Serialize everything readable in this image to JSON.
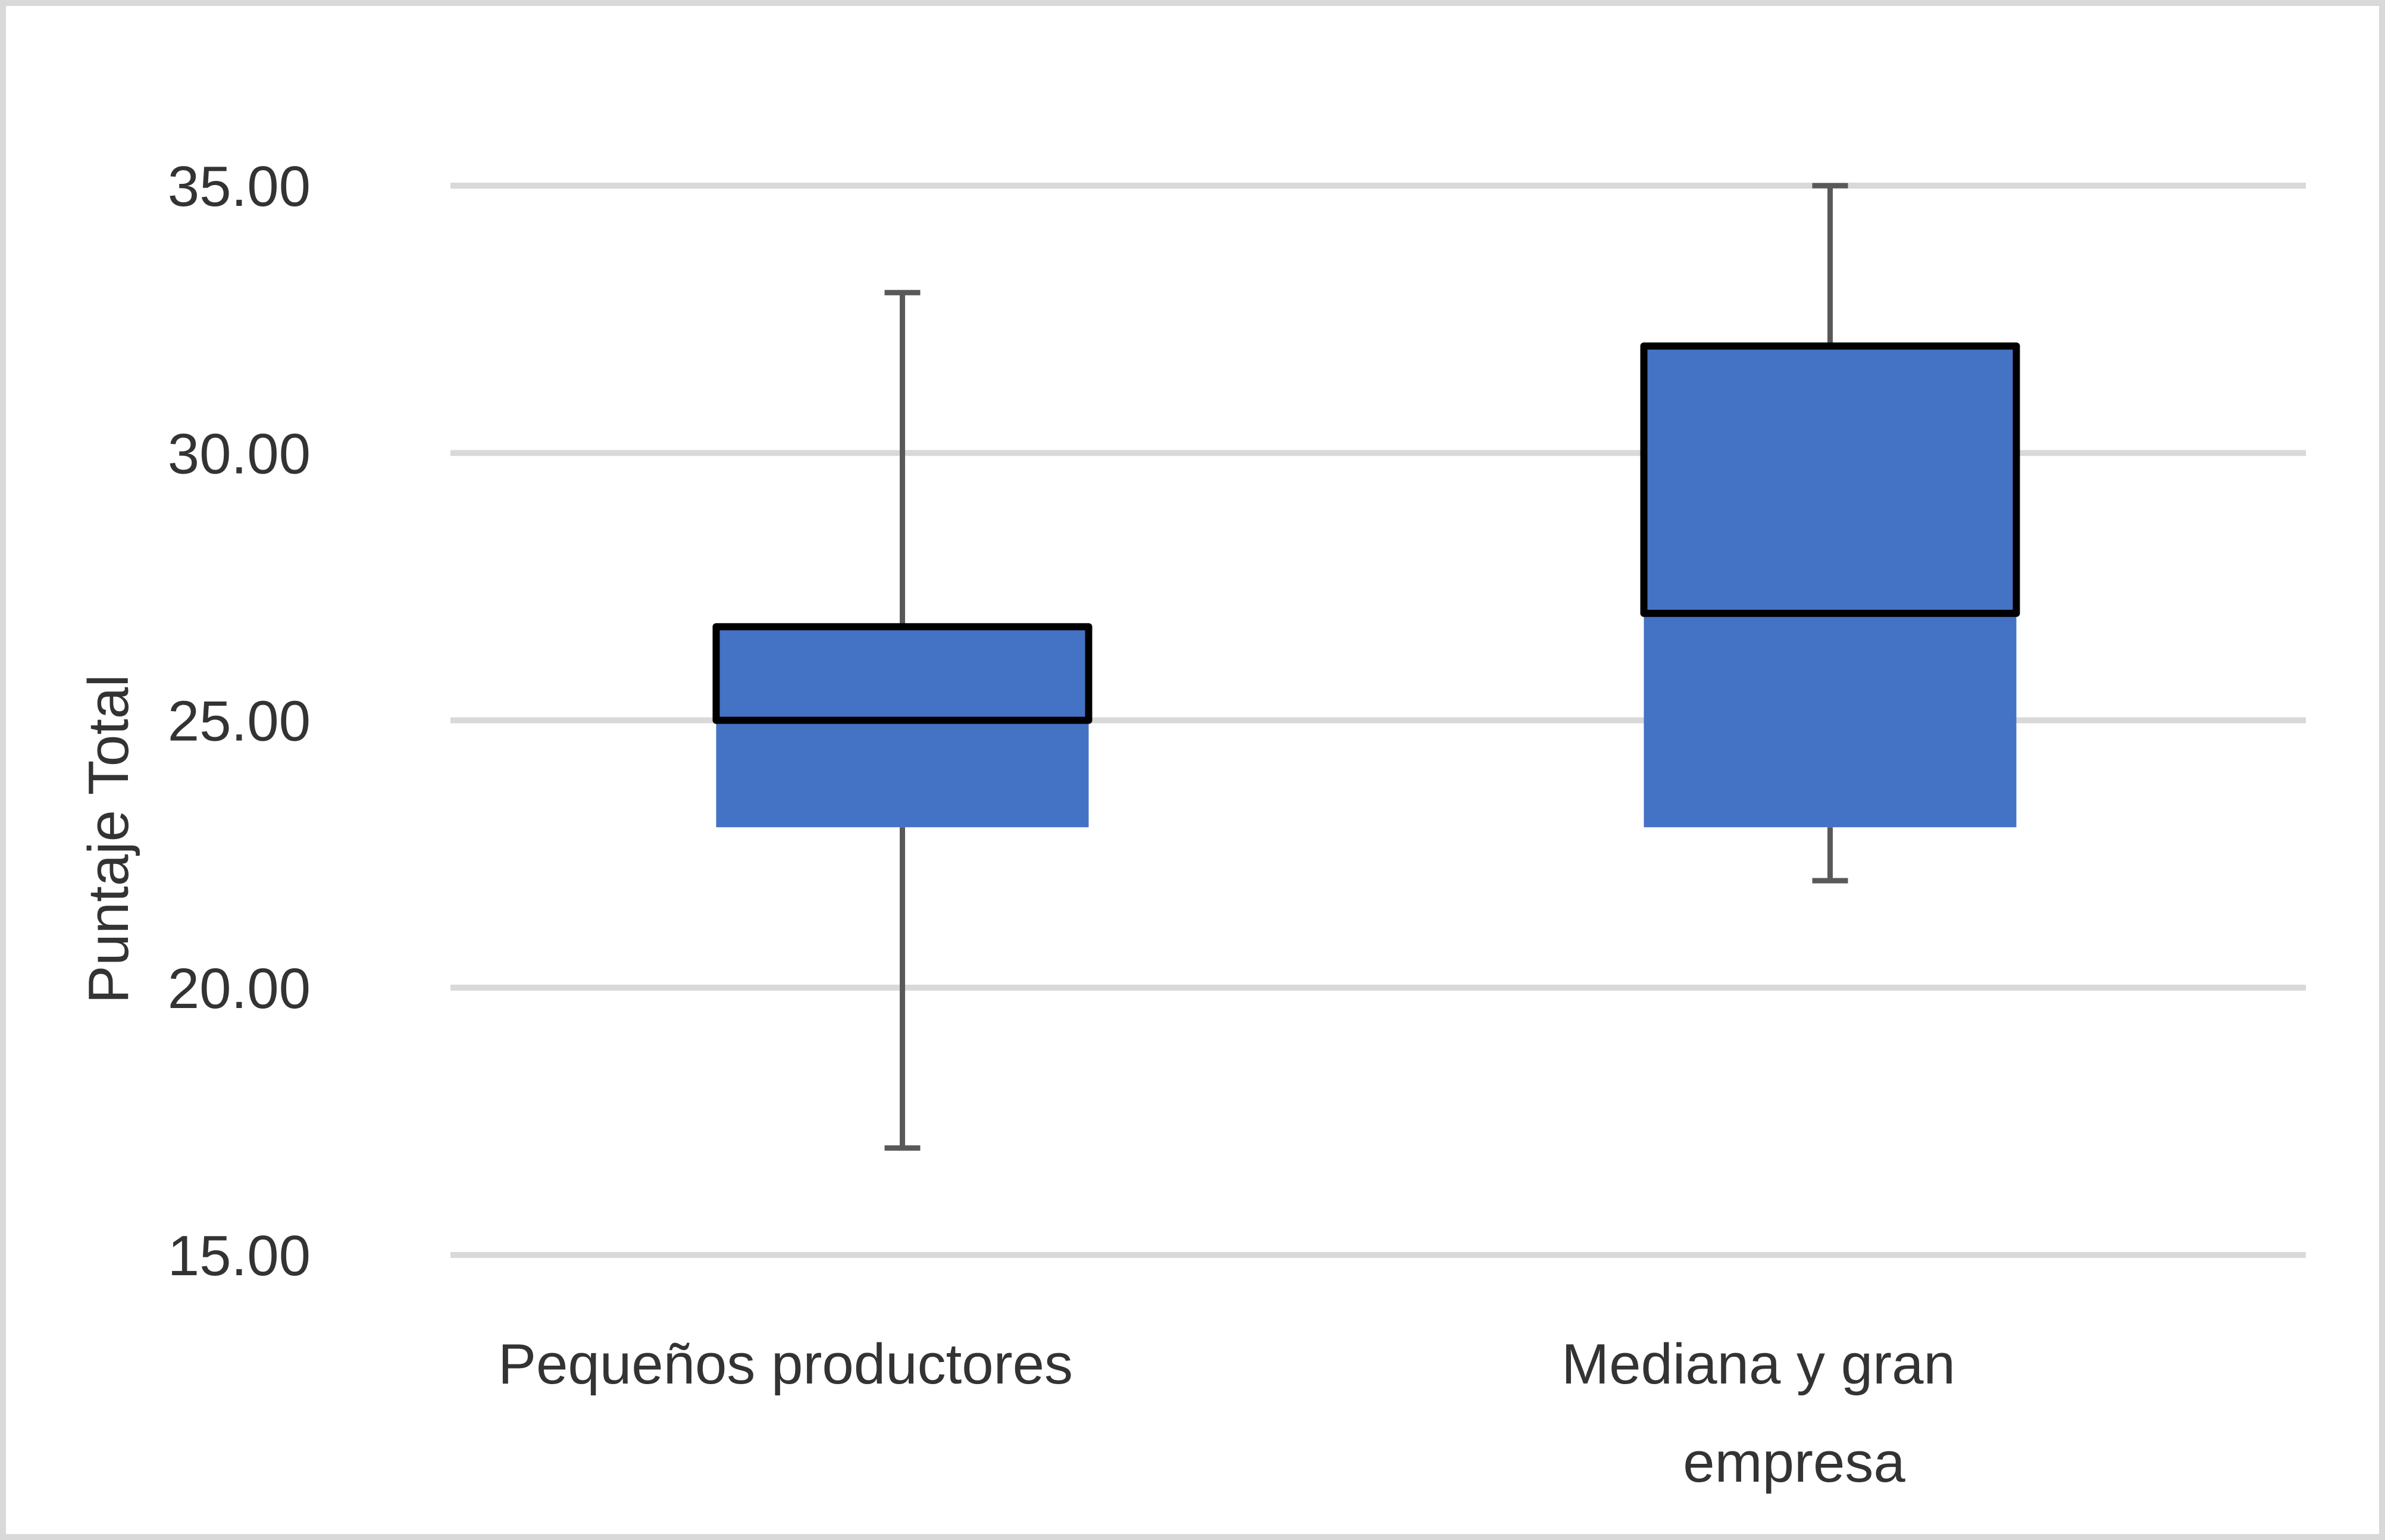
{
  "chart_data": {
    "type": "box",
    "title": "",
    "xlabel": "",
    "ylabel": "Puntaje Total",
    "ylim": [
      15,
      35
    ],
    "yticks": [
      15,
      20,
      25,
      30,
      35
    ],
    "ytick_labels": [
      "15.00",
      "20.00",
      "25.00",
      "30.00",
      "35.00"
    ],
    "grid": true,
    "legend": null,
    "categories": [
      "Pequeños productores",
      "Mediana y gran empresa"
    ],
    "category_label_lines": [
      [
        "Pequeños productores"
      ],
      [
        "Mediana y gran",
        "empresa"
      ]
    ],
    "series": [
      {
        "name": "Pequeños productores",
        "min": 17.0,
        "q1": 23.0,
        "median": 25.0,
        "q3": 26.75,
        "max": 33.0
      },
      {
        "name": "Mediana y gran empresa",
        "min": 22.0,
        "q1": 23.0,
        "median": 27.0,
        "q3": 32.0,
        "max": 35.0
      }
    ],
    "colors": {
      "box_fill": "#4472c4",
      "box_outline": "#000000",
      "whisker": "#595959",
      "grid": "#d9d9d9",
      "text": "#333333",
      "frame": "#d9d9d9"
    }
  }
}
